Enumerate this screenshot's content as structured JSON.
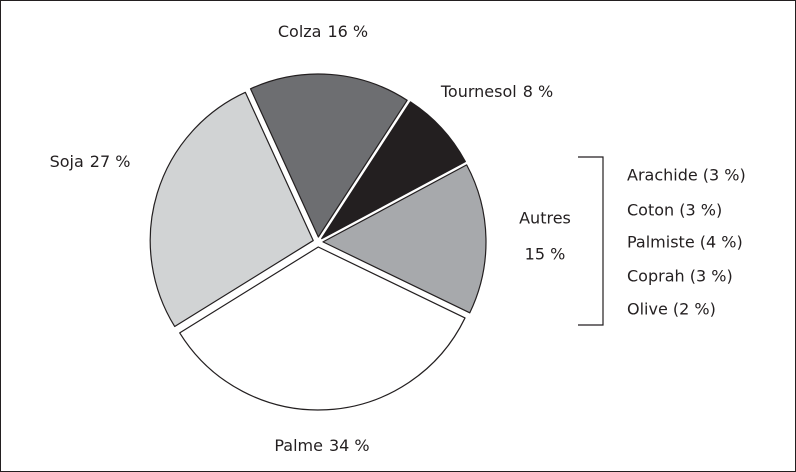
{
  "chart_data": {
    "type": "pie",
    "categories": [
      "Colza",
      "Tournesol",
      "Autres",
      "Palme",
      "Soja"
    ],
    "values": [
      16,
      8,
      15,
      34,
      27
    ],
    "value_labels": [
      "16 %",
      "8 %",
      "15 %",
      "34 %",
      "27 %"
    ],
    "colors": [
      "#6d6e71",
      "#231f20",
      "#a7a9ac",
      "#ffffff",
      "#d1d3d4"
    ],
    "annotations": [
      "Arachide (3 %)",
      "Coton (3 %)",
      "Palmiste (4 %)",
      "Coprah (3 %)",
      "Olive (2 %)"
    ]
  }
}
